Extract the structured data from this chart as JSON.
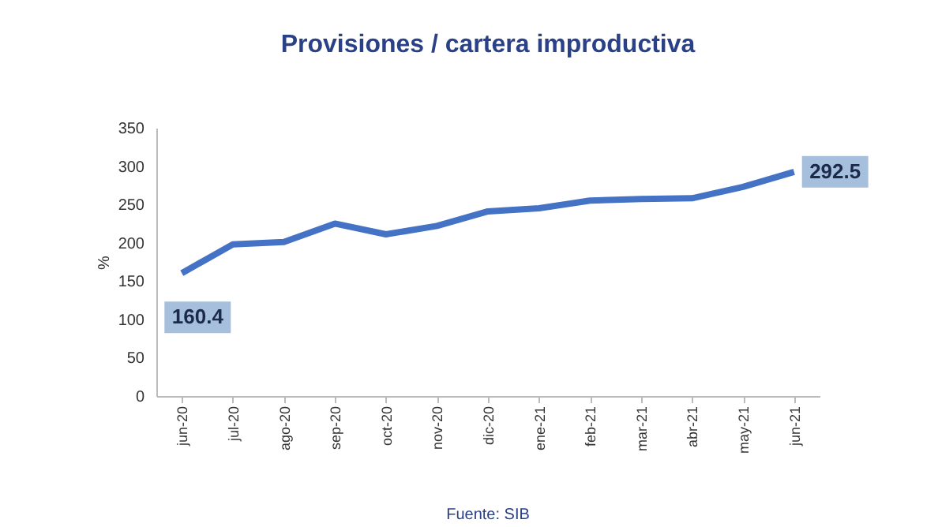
{
  "chart_data": {
    "type": "line",
    "title": "Provisiones / cartera improductiva",
    "ylabel": "%",
    "categories": [
      "jun-20",
      "jul-20",
      "ago-20",
      "sep-20",
      "oct-20",
      "nov-20",
      "dic-20",
      "ene-21",
      "feb-21",
      "mar-21",
      "abr-21",
      "may-21",
      "jun-21"
    ],
    "series": [
      {
        "color": "#4472c4",
        "values": [
          160.4,
          198,
          201,
          225,
          211,
          222,
          241,
          245,
          255,
          257,
          258,
          273,
          292.5
        ],
        "value_labels": [
          "160.4",
          null,
          null,
          null,
          null,
          null,
          null,
          null,
          null,
          null,
          null,
          null,
          "292.5"
        ]
      }
    ],
    "ylim": [
      0,
      350
    ],
    "yticks": [
      0,
      50,
      100,
      150,
      200,
      250,
      300,
      350
    ],
    "grid": false,
    "legend": false,
    "marker": "none",
    "line_style": "solid",
    "annotations": [
      "Fuente: SIB"
    ]
  }
}
